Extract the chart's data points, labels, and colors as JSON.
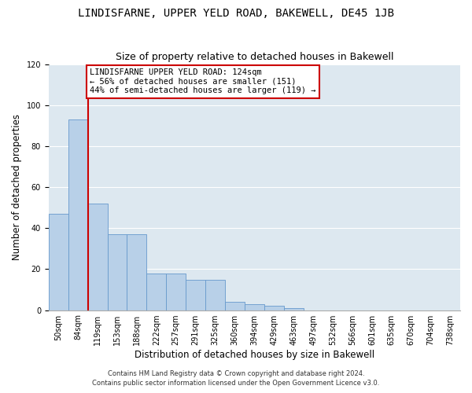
{
  "title1": "LINDISFARNE, UPPER YELD ROAD, BAKEWELL, DE45 1JB",
  "title2": "Size of property relative to detached houses in Bakewell",
  "xlabel": "Distribution of detached houses by size in Bakewell",
  "ylabel": "Number of detached properties",
  "footnote1": "Contains HM Land Registry data © Crown copyright and database right 2024.",
  "footnote2": "Contains public sector information licensed under the Open Government Licence v3.0.",
  "bin_labels": [
    "50sqm",
    "84sqm",
    "119sqm",
    "153sqm",
    "188sqm",
    "222sqm",
    "257sqm",
    "291sqm",
    "325sqm",
    "360sqm",
    "394sqm",
    "429sqm",
    "463sqm",
    "497sqm",
    "532sqm",
    "566sqm",
    "601sqm",
    "635sqm",
    "670sqm",
    "704sqm",
    "738sqm"
  ],
  "bar_values": [
    47,
    93,
    52,
    37,
    37,
    18,
    18,
    15,
    15,
    4,
    3,
    2,
    1,
    0,
    0,
    0,
    0,
    0,
    0,
    0,
    0
  ],
  "bar_color": "#b8d0e8",
  "bar_edge_color": "#6699cc",
  "red_line_index": 2,
  "highlight_line_color": "#cc0000",
  "annotation_text": "LINDISFARNE UPPER YELD ROAD: 124sqm\n← 56% of detached houses are smaller (151)\n44% of semi-detached houses are larger (119) →",
  "annotation_box_color": "white",
  "annotation_box_edge_color": "#cc0000",
  "ylim": [
    0,
    120
  ],
  "yticks": [
    0,
    20,
    40,
    60,
    80,
    100,
    120
  ],
  "background_color": "#dde8f0",
  "grid_color": "white",
  "title1_fontsize": 10,
  "title2_fontsize": 9,
  "xlabel_fontsize": 8.5,
  "ylabel_fontsize": 8.5,
  "annotation_fontsize": 7.5,
  "tick_fontsize": 7
}
